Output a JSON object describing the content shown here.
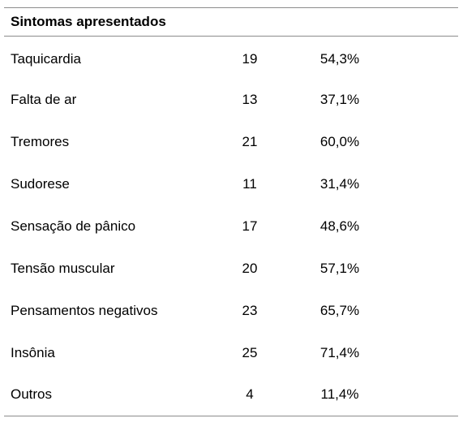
{
  "table": {
    "header": "Sintomas apresentados",
    "rows": [
      {
        "symptom": "Taquicardia",
        "count": "19",
        "percent": "54,3%"
      },
      {
        "symptom": "Falta de ar",
        "count": "13",
        "percent": "37,1%"
      },
      {
        "symptom": "Tremores",
        "count": "21",
        "percent": "60,0%"
      },
      {
        "symptom": "Sudorese",
        "count": "11",
        "percent": "31,4%"
      },
      {
        "symptom": "Sensação de pânico",
        "count": "17",
        "percent": "48,6%"
      },
      {
        "symptom": "Tensão muscular",
        "count": "20",
        "percent": "57,1%"
      },
      {
        "symptom": "Pensamentos negativos",
        "count": "23",
        "percent": "65,7%"
      },
      {
        "symptom": "Insônia",
        "count": "25",
        "percent": "71,4%"
      },
      {
        "symptom": "Outros",
        "count": "4",
        "percent": "11,4%"
      }
    ]
  }
}
